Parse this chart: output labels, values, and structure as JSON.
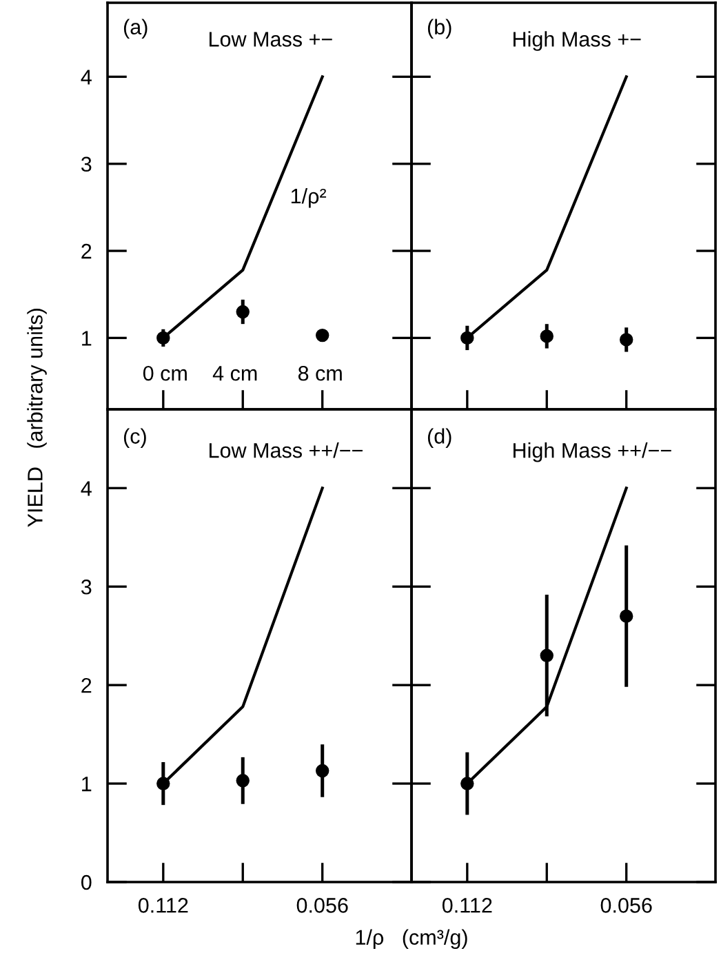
{
  "chart_data": [
    {
      "type": "scatter",
      "annotations": [
        "(a)",
        "Low Mass +−",
        "1/ρ²",
        "0 cm",
        "4 cm",
        "8 cm"
      ],
      "ylabel": "YIELD   (arbitrary units)",
      "categories": [
        "0.112",
        null,
        "0.056"
      ],
      "tick_labels": "y",
      "series": [
        {
          "type": "line",
          "color": "#000000",
          "values": [
            1,
            1.78,
            4
          ]
        },
        {
          "color": "#000000",
          "marker": "circle",
          "values": [
            1.0,
            1.3,
            1.03
          ],
          "errors": [
            0.08,
            0.12,
            null
          ]
        }
      ],
      "ylim": [
        0.18,
        4.85
      ],
      "yticks": [
        1,
        2,
        3,
        4
      ]
    },
    {
      "type": "scatter",
      "annotations": [
        "(b)",
        "High Mass +−"
      ],
      "categories": [
        "0.112",
        null,
        "0.056"
      ],
      "tick_labels": false,
      "series": [
        {
          "type": "line",
          "color": "#000000",
          "values": [
            1,
            1.78,
            4
          ]
        },
        {
          "color": "#000000",
          "marker": "circle",
          "values": [
            1.0,
            1.02,
            0.98
          ],
          "errors": [
            0.12,
            0.12,
            0.12
          ]
        }
      ],
      "ylim": [
        0.18,
        4.85
      ],
      "yticks": [
        1,
        2,
        3,
        4
      ]
    },
    {
      "type": "scatter",
      "annotations": [
        "(c)",
        "Low Mass ++/−−"
      ],
      "xlabel": "1/ρ   (cm³/g)",
      "categories": [
        "0.112",
        null,
        "0.056"
      ],
      "series": [
        {
          "type": "line",
          "color": "#000000",
          "values": [
            1,
            1.78,
            4
          ]
        },
        {
          "color": "#000000",
          "marker": "circle",
          "values": [
            1.0,
            1.03,
            1.13
          ],
          "errors": [
            0.2,
            0.22,
            0.25
          ]
        }
      ],
      "ylim": [
        0,
        4.8
      ],
      "yticks": [
        0,
        1,
        2,
        3,
        4
      ]
    },
    {
      "type": "scatter",
      "annotations": [
        "(d)",
        "High Mass ++/−−"
      ],
      "categories": [
        "0.112",
        null,
        "0.056"
      ],
      "tick_labels": "x",
      "series": [
        {
          "type": "line",
          "color": "#000000",
          "values": [
            1,
            1.78,
            4
          ]
        },
        {
          "color": "#000000",
          "marker": "circle",
          "values": [
            1.0,
            2.3,
            2.7
          ],
          "errors": [
            0.3,
            0.6,
            0.7
          ]
        }
      ],
      "ylim": [
        0,
        4.8
      ],
      "yticks": [
        0,
        1,
        2,
        3,
        4
      ]
    }
  ]
}
